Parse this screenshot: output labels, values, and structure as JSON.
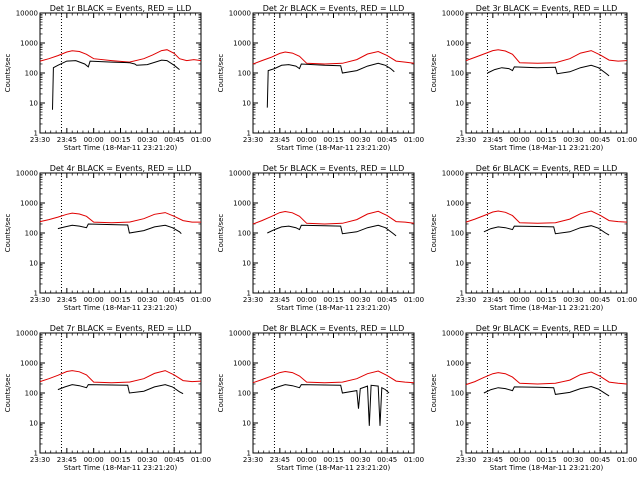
{
  "chart_data": {
    "type": "line",
    "layout": "3x3 grid",
    "y_scale": "log",
    "ylim": [
      1,
      10000
    ],
    "ytick_labels": [
      "1",
      "10",
      "100",
      "1000",
      "10000"
    ],
    "xtick_labels": [
      "23:30",
      "23:45",
      "00:00",
      "00:15",
      "00:30",
      "00:45",
      "01:00"
    ],
    "xlim_minutes_from_2330": [
      0,
      90
    ],
    "ylabel": "Counts/sec",
    "xlabel": "Start Time (18-Mar-11 23:21:20)",
    "colors": {
      "events": "#000000",
      "lld": "#e00000"
    },
    "panels": [
      {
        "title": "Det 1r BLACK = Events, RED = LLD",
        "vlines": [
          12,
          75
        ],
        "lld": [
          [
            0,
            250
          ],
          [
            5,
            300
          ],
          [
            10,
            380
          ],
          [
            15,
            500
          ],
          [
            18,
            550
          ],
          [
            22,
            520
          ],
          [
            26,
            420
          ],
          [
            30,
            300
          ],
          [
            40,
            260
          ],
          [
            50,
            230
          ],
          [
            58,
            300
          ],
          [
            63,
            400
          ],
          [
            68,
            560
          ],
          [
            71,
            600
          ],
          [
            75,
            450
          ],
          [
            78,
            300
          ],
          [
            82,
            260
          ],
          [
            86,
            280
          ],
          [
            90,
            260
          ]
        ],
        "events": [
          [
            7,
            6
          ],
          [
            7.5,
            150
          ],
          [
            10,
            180
          ],
          [
            15,
            250
          ],
          [
            20,
            260
          ],
          [
            25,
            200
          ],
          [
            27,
            160
          ],
          [
            28,
            250
          ],
          [
            40,
            230
          ],
          [
            50,
            220
          ],
          [
            53,
            200
          ],
          [
            54,
            180
          ],
          [
            60,
            190
          ],
          [
            68,
            270
          ],
          [
            71,
            260
          ],
          [
            75,
            180
          ],
          [
            78,
            130
          ]
        ]
      },
      {
        "title": "Det 2r BLACK = Events, RED = LLD",
        "vlines": [
          12,
          75
        ],
        "lld": [
          [
            0,
            200
          ],
          [
            5,
            260
          ],
          [
            10,
            330
          ],
          [
            15,
            450
          ],
          [
            18,
            500
          ],
          [
            22,
            460
          ],
          [
            26,
            360
          ],
          [
            30,
            210
          ],
          [
            40,
            200
          ],
          [
            50,
            210
          ],
          [
            58,
            280
          ],
          [
            64,
            430
          ],
          [
            70,
            520
          ],
          [
            75,
            380
          ],
          [
            80,
            250
          ],
          [
            85,
            230
          ],
          [
            90,
            210
          ]
        ],
        "events": [
          [
            8,
            7
          ],
          [
            8.5,
            120
          ],
          [
            12,
            140
          ],
          [
            16,
            180
          ],
          [
            20,
            190
          ],
          [
            24,
            170
          ],
          [
            26,
            140
          ],
          [
            27,
            200
          ],
          [
            40,
            180
          ],
          [
            49,
            175
          ],
          [
            50,
            100
          ],
          [
            58,
            120
          ],
          [
            64,
            170
          ],
          [
            70,
            210
          ],
          [
            74,
            180
          ],
          [
            77,
            140
          ],
          [
            79,
            110
          ]
        ]
      },
      {
        "title": "Det 3r BLACK = Events, RED = LLD",
        "vlines": [
          12,
          75
        ],
        "lld": [
          [
            0,
            260
          ],
          [
            5,
            330
          ],
          [
            10,
            430
          ],
          [
            15,
            560
          ],
          [
            18,
            600
          ],
          [
            22,
            540
          ],
          [
            26,
            420
          ],
          [
            30,
            220
          ],
          [
            40,
            210
          ],
          [
            50,
            220
          ],
          [
            58,
            300
          ],
          [
            64,
            460
          ],
          [
            70,
            560
          ],
          [
            75,
            400
          ],
          [
            80,
            270
          ],
          [
            85,
            250
          ],
          [
            90,
            260
          ]
        ],
        "events": [
          [
            12,
            100
          ],
          [
            16,
            130
          ],
          [
            20,
            150
          ],
          [
            24,
            140
          ],
          [
            26,
            120
          ],
          [
            27,
            160
          ],
          [
            40,
            150
          ],
          [
            50,
            155
          ],
          [
            51,
            95
          ],
          [
            58,
            110
          ],
          [
            64,
            150
          ],
          [
            70,
            180
          ],
          [
            74,
            150
          ],
          [
            78,
            100
          ],
          [
            80,
            80
          ]
        ]
      },
      {
        "title": "Det 4r BLACK = Events, RED = LLD",
        "vlines": [
          12,
          75
        ],
        "lld": [
          [
            0,
            240
          ],
          [
            5,
            280
          ],
          [
            10,
            340
          ],
          [
            15,
            420
          ],
          [
            18,
            460
          ],
          [
            22,
            430
          ],
          [
            26,
            360
          ],
          [
            30,
            230
          ],
          [
            40,
            220
          ],
          [
            50,
            230
          ],
          [
            58,
            300
          ],
          [
            64,
            420
          ],
          [
            70,
            480
          ],
          [
            75,
            360
          ],
          [
            80,
            260
          ],
          [
            85,
            230
          ],
          [
            90,
            230
          ]
        ],
        "events": [
          [
            10,
            140
          ],
          [
            14,
            160
          ],
          [
            18,
            180
          ],
          [
            22,
            170
          ],
          [
            26,
            150
          ],
          [
            27,
            200
          ],
          [
            40,
            190
          ],
          [
            49,
            185
          ],
          [
            50,
            100
          ],
          [
            58,
            120
          ],
          [
            64,
            160
          ],
          [
            70,
            180
          ],
          [
            74,
            150
          ],
          [
            78,
            110
          ],
          [
            79,
            95
          ]
        ]
      },
      {
        "title": "Det 5r BLACK = Events, RED = LLD",
        "vlines": [
          12,
          75
        ],
        "lld": [
          [
            0,
            200
          ],
          [
            5,
            260
          ],
          [
            10,
            350
          ],
          [
            15,
            480
          ],
          [
            18,
            520
          ],
          [
            22,
            470
          ],
          [
            26,
            360
          ],
          [
            30,
            210
          ],
          [
            40,
            200
          ],
          [
            50,
            210
          ],
          [
            58,
            280
          ],
          [
            64,
            430
          ],
          [
            70,
            530
          ],
          [
            75,
            380
          ],
          [
            80,
            240
          ],
          [
            85,
            230
          ],
          [
            90,
            210
          ]
        ],
        "events": [
          [
            8,
            100
          ],
          [
            12,
            130
          ],
          [
            16,
            160
          ],
          [
            20,
            170
          ],
          [
            24,
            150
          ],
          [
            26,
            130
          ],
          [
            27,
            180
          ],
          [
            40,
            175
          ],
          [
            49,
            170
          ],
          [
            50,
            95
          ],
          [
            58,
            110
          ],
          [
            64,
            150
          ],
          [
            70,
            180
          ],
          [
            74,
            150
          ],
          [
            78,
            100
          ],
          [
            80,
            80
          ]
        ]
      },
      {
        "title": "Det 6r BLACK = Events, RED = LLD",
        "vlines": [
          12,
          75
        ],
        "lld": [
          [
            0,
            230
          ],
          [
            5,
            290
          ],
          [
            10,
            380
          ],
          [
            15,
            500
          ],
          [
            18,
            540
          ],
          [
            22,
            490
          ],
          [
            26,
            380
          ],
          [
            30,
            220
          ],
          [
            40,
            210
          ],
          [
            50,
            220
          ],
          [
            58,
            290
          ],
          [
            64,
            440
          ],
          [
            70,
            540
          ],
          [
            75,
            390
          ],
          [
            80,
            260
          ],
          [
            85,
            240
          ],
          [
            90,
            230
          ]
        ],
        "events": [
          [
            10,
            110
          ],
          [
            14,
            140
          ],
          [
            18,
            160
          ],
          [
            22,
            150
          ],
          [
            26,
            130
          ],
          [
            27,
            170
          ],
          [
            40,
            165
          ],
          [
            49,
            160
          ],
          [
            50,
            95
          ],
          [
            58,
            110
          ],
          [
            64,
            150
          ],
          [
            70,
            175
          ],
          [
            74,
            145
          ],
          [
            78,
            100
          ],
          [
            80,
            85
          ]
        ]
      },
      {
        "title": "Det 7r BLACK = Events, RED = LLD",
        "vlines": [
          12,
          75
        ],
        "lld": [
          [
            0,
            240
          ],
          [
            5,
            300
          ],
          [
            10,
            390
          ],
          [
            15,
            520
          ],
          [
            18,
            560
          ],
          [
            22,
            510
          ],
          [
            26,
            400
          ],
          [
            30,
            230
          ],
          [
            40,
            220
          ],
          [
            50,
            230
          ],
          [
            58,
            300
          ],
          [
            64,
            450
          ],
          [
            70,
            560
          ],
          [
            75,
            400
          ],
          [
            80,
            260
          ],
          [
            85,
            240
          ],
          [
            90,
            250
          ]
        ],
        "events": [
          [
            10,
            130
          ],
          [
            14,
            160
          ],
          [
            18,
            190
          ],
          [
            22,
            175
          ],
          [
            26,
            150
          ],
          [
            27,
            190
          ],
          [
            40,
            185
          ],
          [
            49,
            180
          ],
          [
            50,
            100
          ],
          [
            58,
            115
          ],
          [
            64,
            160
          ],
          [
            70,
            190
          ],
          [
            74,
            160
          ],
          [
            78,
            110
          ],
          [
            80,
            95
          ]
        ]
      },
      {
        "title": "Det 8r BLACK = Events, RED = LLD",
        "vlines": [
          12,
          75
        ],
        "lld": [
          [
            0,
            220
          ],
          [
            5,
            280
          ],
          [
            10,
            360
          ],
          [
            15,
            480
          ],
          [
            18,
            520
          ],
          [
            22,
            480
          ],
          [
            26,
            370
          ],
          [
            30,
            230
          ],
          [
            40,
            220
          ],
          [
            50,
            230
          ],
          [
            58,
            300
          ],
          [
            64,
            440
          ],
          [
            70,
            540
          ],
          [
            75,
            380
          ],
          [
            80,
            250
          ],
          [
            85,
            230
          ],
          [
            90,
            220
          ]
        ],
        "events": [
          [
            10,
            130
          ],
          [
            14,
            160
          ],
          [
            18,
            190
          ],
          [
            22,
            175
          ],
          [
            26,
            150
          ],
          [
            27,
            190
          ],
          [
            40,
            185
          ],
          [
            49,
            180
          ],
          [
            50,
            100
          ],
          [
            58,
            120
          ],
          [
            59,
            30
          ],
          [
            60,
            140
          ],
          [
            64,
            170
          ],
          [
            65,
            8
          ],
          [
            66,
            180
          ],
          [
            70,
            170
          ],
          [
            71,
            8
          ],
          [
            72,
            150
          ],
          [
            74,
            130
          ],
          [
            76,
            100
          ]
        ]
      },
      {
        "title": "Det 9r BLACK = Events, RED = LLD",
        "vlines": [
          12,
          75
        ],
        "lld": [
          [
            0,
            190
          ],
          [
            5,
            240
          ],
          [
            10,
            330
          ],
          [
            15,
            440
          ],
          [
            18,
            480
          ],
          [
            22,
            440
          ],
          [
            26,
            340
          ],
          [
            30,
            210
          ],
          [
            40,
            200
          ],
          [
            50,
            210
          ],
          [
            58,
            270
          ],
          [
            64,
            410
          ],
          [
            70,
            500
          ],
          [
            75,
            360
          ],
          [
            80,
            230
          ],
          [
            85,
            210
          ],
          [
            90,
            200
          ]
        ],
        "events": [
          [
            10,
            100
          ],
          [
            14,
            130
          ],
          [
            18,
            150
          ],
          [
            22,
            140
          ],
          [
            26,
            120
          ],
          [
            27,
            160
          ],
          [
            40,
            155
          ],
          [
            49,
            150
          ],
          [
            50,
            90
          ],
          [
            58,
            105
          ],
          [
            64,
            140
          ],
          [
            70,
            165
          ],
          [
            74,
            135
          ],
          [
            78,
            95
          ],
          [
            80,
            80
          ]
        ]
      }
    ]
  }
}
